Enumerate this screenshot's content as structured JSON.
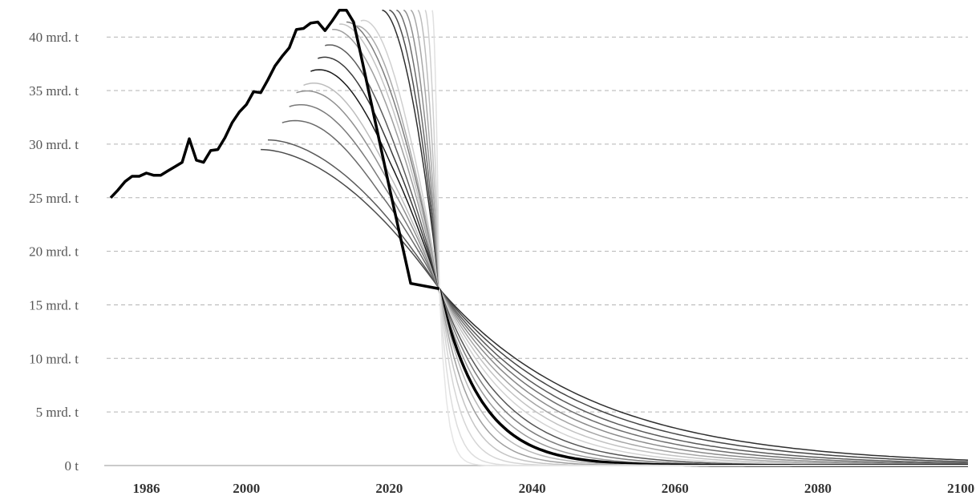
{
  "chart_data": {
    "type": "line",
    "title": "",
    "xlabel": "",
    "ylabel": "",
    "unit": "mrd. t",
    "x_ticks": [
      1986,
      2000,
      2020,
      2040,
      2060,
      2080,
      2100
    ],
    "y_ticks": [
      {
        "value": 0,
        "label": "0 t"
      },
      {
        "value": 5,
        "label": "5 mrd. t"
      },
      {
        "value": 10,
        "label": "10 mrd. t"
      },
      {
        "value": 15,
        "label": "15 mrd. t"
      },
      {
        "value": 20,
        "label": "20 mrd. t"
      },
      {
        "value": 25,
        "label": "25 mrd. t"
      },
      {
        "value": 30,
        "label": "30 mrd. t"
      },
      {
        "value": 35,
        "label": "35 mrd. t"
      },
      {
        "value": 40,
        "label": "40 mrd. t"
      }
    ],
    "xlim": [
      1981,
      2101
    ],
    "ylim": [
      0,
      42.5
    ],
    "grid": true,
    "convergence_point": {
      "year": 2027,
      "value": 16.5
    },
    "historical": {
      "years": [
        1981,
        1982,
        1983,
        1984,
        1985,
        1986,
        1987,
        1988,
        1989,
        1990,
        1991,
        1992,
        1993,
        1994,
        1995,
        1996,
        1997,
        1998,
        1999,
        2000,
        2001,
        2002,
        2003,
        2004,
        2005,
        2006,
        2007,
        2008,
        2009,
        2010,
        2011,
        2012,
        2013,
        2014,
        2015,
        2016,
        2017,
        2018,
        2019,
        2020,
        2021,
        2022,
        2023
      ],
      "values": [
        25.0,
        25.7,
        26.5,
        27.0,
        27.0,
        27.3,
        27.1,
        27.1,
        27.5,
        27.9,
        28.3,
        30.5,
        28.5,
        28.3,
        29.4,
        29.5,
        30.6,
        32.0,
        33.0,
        33.7,
        34.9,
        34.8,
        36.0,
        37.3,
        38.2,
        39.0,
        40.7,
        40.8,
        41.3,
        41.4,
        40.6,
        41.5,
        42.5,
        42.5,
        41.4,
        38.4,
        35.3,
        32.2,
        29.1,
        26.0,
        23.0,
        20.0,
        17.0
      ]
    },
    "pathways": [
      {
        "start_year": 2002,
        "start_value": 29.5,
        "peak": 29.5,
        "shade": "#4a4a4a"
      },
      {
        "start_year": 2003,
        "start_value": 30.4,
        "peak": 30.4,
        "shade": "#5a5a5a"
      },
      {
        "start_year": 2005,
        "start_value": 32.0,
        "peak": 33.0,
        "shade": "#6a6a6a"
      },
      {
        "start_year": 2006,
        "start_value": 33.5,
        "peak": 34.5,
        "shade": "#7a7a7a"
      },
      {
        "start_year": 2007,
        "start_value": 34.8,
        "peak": 35.8,
        "shade": "#909090"
      },
      {
        "start_year": 2008,
        "start_value": 35.5,
        "peak": 36.6,
        "shade": "#bdbdbd"
      },
      {
        "start_year": 2009,
        "start_value": 36.8,
        "peak": 37.8,
        "shade": "#1a1a1a"
      },
      {
        "start_year": 2010,
        "start_value": 38.0,
        "peak": 38.9,
        "shade": "#3a3a3a"
      },
      {
        "start_year": 2011,
        "start_value": 39.2,
        "peak": 39.9,
        "shade": "#5c5c5c"
      },
      {
        "start_year": 2012,
        "start_value": 40.7,
        "peak": 41.0,
        "shade": "#9e9e9e"
      },
      {
        "start_year": 2013,
        "start_value": 41.2,
        "peak": 41.5,
        "shade": "#c4c4c4"
      },
      {
        "start_year": 2014,
        "start_value": 41.4,
        "peak": 41.5,
        "shade": "#7e7e7e"
      },
      {
        "start_year": 2015,
        "start_value": 41.0,
        "peak": 41.6,
        "shade": "#ababab"
      },
      {
        "start_year": 2016,
        "start_value": 41.5,
        "peak": 42.2,
        "shade": "#d0d0d0"
      },
      {
        "start_year": 2019,
        "start_value": 42.5,
        "peak": 42.5,
        "shade": "#2e2e2e"
      },
      {
        "start_year": 2020,
        "start_value": 42.5,
        "peak": 42.5,
        "shade": "#4d4d4d"
      },
      {
        "start_year": 2021,
        "start_value": 42.5,
        "peak": 42.5,
        "shade": "#6e6e6e"
      },
      {
        "start_year": 2022,
        "start_value": 42.5,
        "peak": 42.5,
        "shade": "#8e8e8e"
      },
      {
        "start_year": 2023,
        "start_value": 42.5,
        "peak": 42.5,
        "shade": "#a8a8a8"
      },
      {
        "start_year": 2024,
        "start_value": 42.5,
        "peak": 42.5,
        "shade": "#bcbcbc"
      },
      {
        "start_year": 2025,
        "start_value": 42.5,
        "peak": 42.5,
        "shade": "#cfcfcf"
      },
      {
        "start_year": 2026,
        "start_value": 42.5,
        "peak": 42.5,
        "shade": "#e0e0e0"
      }
    ],
    "decay_tails": [
      {
        "k": 0.047,
        "shade": "#2f2f2f"
      },
      {
        "k": 0.052,
        "shade": "#444444"
      },
      {
        "k": 0.058,
        "shade": "#5a5a5a"
      },
      {
        "k": 0.064,
        "shade": "#6e6e6e"
      },
      {
        "k": 0.071,
        "shade": "#8a8a8a"
      },
      {
        "k": 0.079,
        "shade": "#a5a5a5"
      },
      {
        "k": 0.088,
        "shade": "#c2c2c2"
      },
      {
        "k": 0.099,
        "shade": "#d2d2d2"
      },
      {
        "k": 0.112,
        "shade": "#555555"
      },
      {
        "k": 0.128,
        "shade": "#7d7d7d"
      },
      {
        "k": 0.147,
        "shade": "#9a9a9a"
      },
      {
        "k": 0.17,
        "shade": "#000000",
        "bold": true
      },
      {
        "k": 0.2,
        "shade": "#b8b8b8"
      },
      {
        "k": 0.24,
        "shade": "#9f9f9f"
      },
      {
        "k": 0.3,
        "shade": "#c5c5c5"
      },
      {
        "k": 0.4,
        "shade": "#d5d5d5"
      },
      {
        "k": 0.6,
        "shade": "#dddddd"
      },
      {
        "k": 1.0,
        "shade": "#e5e5e5"
      }
    ]
  }
}
